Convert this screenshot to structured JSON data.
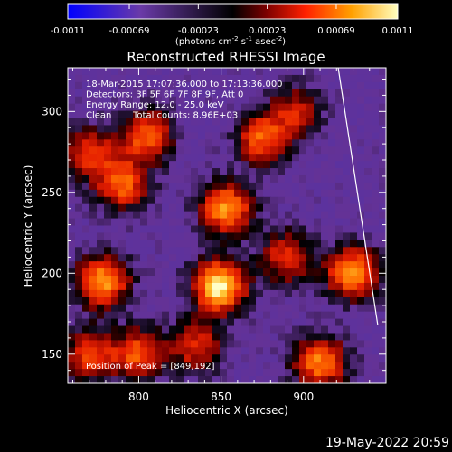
{
  "chart_data": {
    "type": "heatmap",
    "title": "Reconstructed RHESSI Image",
    "xlabel": "Heliocentric X (arcsec)",
    "ylabel": "Heliocentric Y (arcsec)",
    "xlim": [
      757,
      950
    ],
    "ylim": [
      132,
      327
    ],
    "x_ticks": [
      "800",
      "850",
      "900"
    ],
    "y_ticks": [
      "150",
      "200",
      "250",
      "300"
    ],
    "colorbar": {
      "ticks": [
        "-0.0011",
        "-0.00069",
        "-0.00023",
        "0.00023",
        "0.00069",
        "0.0011"
      ],
      "unit_text": "(photons cm",
      "unit_sup1": "-2",
      "unit_mid": " s",
      "unit_sup2": "-1",
      "unit_end": " asec",
      "unit_sup3": "-2",
      "unit_close": ")",
      "range": [
        -0.0011,
        0.0011
      ]
    },
    "info_lines": [
      "18-Mar-2015 17:07:36.000 to 17:13:36.000",
      "Detectors: 3F 5F 6F 7F 8F 9F, Att 0",
      "Energy Range: 12.0 - 25.0 keV",
      "Clean",
      "Total counts: 8.96E+03"
    ],
    "peak_label": "Position of Peak = [849,192]",
    "peak": {
      "x": 849,
      "y": 192
    },
    "sources": [
      {
        "x": 849,
        "y": 192,
        "peak": 0.0011
      },
      {
        "x": 778,
        "y": 195,
        "peak": 0.0008
      },
      {
        "x": 930,
        "y": 200,
        "peak": 0.00082
      },
      {
        "x": 853,
        "y": 240,
        "peak": 0.00078
      },
      {
        "x": 910,
        "y": 145,
        "peak": 0.00072
      },
      {
        "x": 790,
        "y": 255,
        "peak": 0.00062
      },
      {
        "x": 805,
        "y": 285,
        "peak": 0.0006
      },
      {
        "x": 875,
        "y": 283,
        "peak": 0.00058
      },
      {
        "x": 770,
        "y": 275,
        "peak": 0.00045
      },
      {
        "x": 890,
        "y": 210,
        "peak": 0.00045
      },
      {
        "x": 800,
        "y": 150,
        "peak": 0.00055
      },
      {
        "x": 770,
        "y": 150,
        "peak": 0.0005
      },
      {
        "x": 835,
        "y": 155,
        "peak": 0.00042
      },
      {
        "x": 895,
        "y": 300,
        "peak": 0.0003
      }
    ],
    "limb_line": [
      [
        921,
        327
      ],
      [
        945,
        168
      ]
    ]
  },
  "footer": {
    "date": "19-May-2022 20:59"
  },
  "colors": {
    "background": "#000000",
    "text": "#ffffff"
  }
}
